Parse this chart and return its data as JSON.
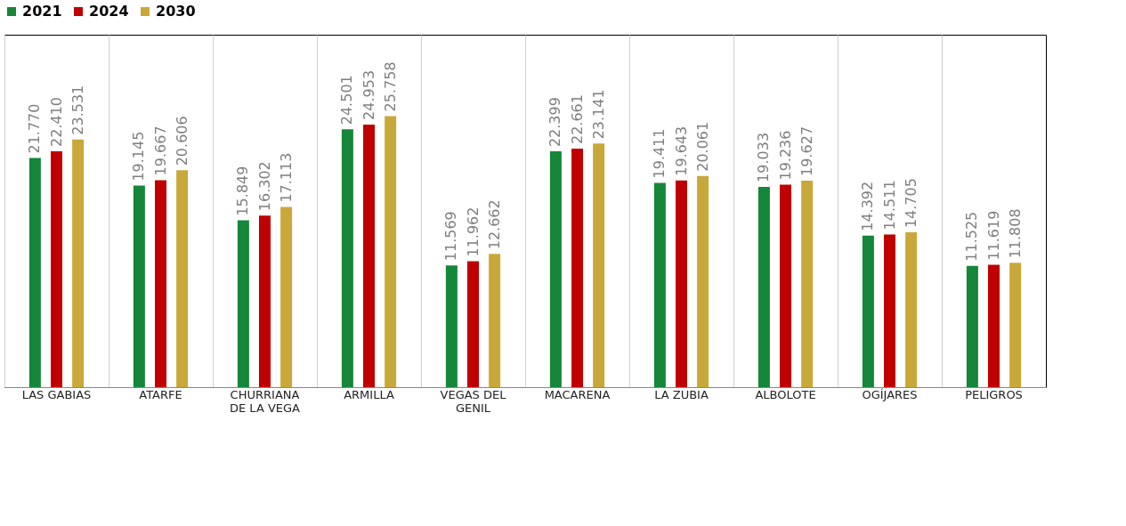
{
  "chart_data": {
    "type": "bar",
    "categories": [
      "LAS GABIAS",
      "ATARFE",
      "CHURRIANA DE LA VEGA",
      "ARMILLA",
      "VEGAS DEL GENIL",
      "MACARENA",
      "LA ZUBIA",
      "ALBOLOTE",
      "OGÍJARES",
      "PELIGROS"
    ],
    "series": [
      {
        "name": "2021",
        "color": "#15863a",
        "values": [
          21770,
          19145,
          15849,
          24501,
          11569,
          22399,
          19411,
          19033,
          14392,
          11525
        ],
        "value_labels": [
          "21.770",
          "19.145",
          "15.849",
          "24.501",
          "11.569",
          "22.399",
          "19.411",
          "19.033",
          "14.392",
          "11.525"
        ]
      },
      {
        "name": "2024",
        "color": "#c00000",
        "values": [
          22410,
          19667,
          16302,
          24953,
          11962,
          22661,
          19643,
          19236,
          14511,
          11619
        ],
        "value_labels": [
          "22.410",
          "19.667",
          "16.302",
          "24.953",
          "11.962",
          "22.661",
          "19.643",
          "19.236",
          "14.511",
          "11.619"
        ]
      },
      {
        "name": "2030",
        "color": "#c9a83a",
        "values": [
          23531,
          20606,
          17113,
          25758,
          12662,
          23141,
          20061,
          19627,
          14705,
          11808
        ],
        "value_labels": [
          "23.531",
          "20.606",
          "17.113",
          "25.758",
          "12.662",
          "23.141",
          "20.061",
          "19.627",
          "14.705",
          "11.808"
        ]
      }
    ],
    "grid": "x",
    "legend": "top"
  }
}
